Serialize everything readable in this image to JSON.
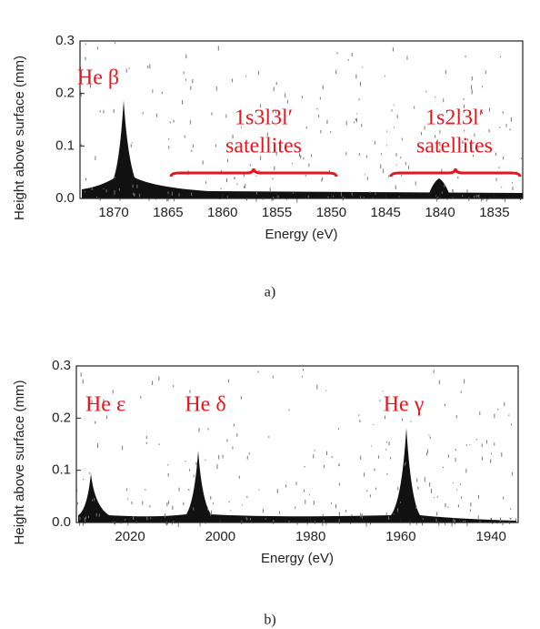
{
  "chart_data": [
    {
      "type": "spectrum-image",
      "xlabel": "Energy (eV)",
      "ylabel": "Height above surface (mm)",
      "xlim": [
        1873.1,
        1832.4
      ],
      "xticks": [
        1870,
        1865,
        1860,
        1855,
        1850,
        1845,
        1840,
        1835
      ],
      "ylim": [
        0,
        0.3
      ],
      "yticks": [
        {
          "value": 0,
          "label": "0.0"
        },
        0.1,
        0.2,
        0.3
      ],
      "annotations": [
        "He β",
        "1s3l3l′",
        "satellites",
        "1s2l3l′",
        "satellites"
      ],
      "annotation_color": "#e8141c",
      "caption": "a)"
    },
    {
      "type": "spectrum-image",
      "xlabel": "Energy (eV)",
      "ylabel": "Height above surface (mm)",
      "xlim": [
        2031.9,
        1934
      ],
      "xticks": [
        2020,
        2000,
        1980,
        1960,
        1940
      ],
      "ylim": [
        0,
        0.3
      ],
      "yticks": [
        {
          "value": 0,
          "label": "0.0"
        },
        0.1,
        0.2,
        0.3
      ],
      "annotations": [
        "He ε",
        "He δ",
        "He γ"
      ],
      "annotation_color": "#e8141c",
      "caption": "b)"
    }
  ]
}
